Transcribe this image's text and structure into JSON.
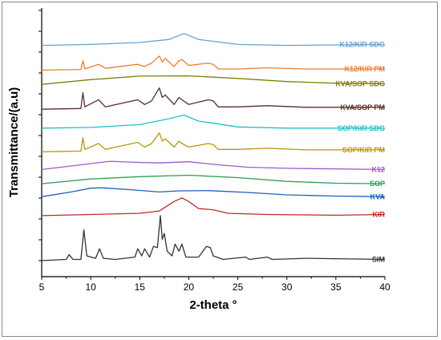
{
  "chart_data": {
    "type": "line",
    "xlabel": "2-theta °",
    "ylabel": "Transmittance/(a.u)",
    "xlim": [
      5,
      40
    ],
    "xticks": [
      5,
      10,
      15,
      20,
      25,
      30,
      35,
      40
    ],
    "ylim": [
      0,
      100
    ],
    "grid": false,
    "legend": "inline-right",
    "series": [
      {
        "name": "K12/KIR SDG",
        "color": "#6a9fc8",
        "baseline": 91,
        "points": [
          [
            5,
            0
          ],
          [
            10,
            0.4
          ],
          [
            15,
            1.2
          ],
          [
            18,
            2.5
          ],
          [
            19.5,
            5
          ],
          [
            21,
            2.5
          ],
          [
            25,
            0.4
          ],
          [
            30,
            0
          ],
          [
            40,
            0.4
          ]
        ]
      },
      {
        "name": "K12/KIR PM",
        "color": "#ed7d31",
        "baseline": 80.5,
        "points": [
          [
            5,
            0
          ],
          [
            9,
            0.3
          ],
          [
            9.2,
            4
          ],
          [
            9.4,
            0.5
          ],
          [
            10.8,
            2.5
          ],
          [
            11.5,
            0.8
          ],
          [
            14.8,
            2.5
          ],
          [
            15.5,
            1.5
          ],
          [
            16.2,
            3
          ],
          [
            17,
            6
          ],
          [
            17.3,
            3.5
          ],
          [
            17.6,
            5
          ],
          [
            18.5,
            1.5
          ],
          [
            19,
            4
          ],
          [
            19.3,
            4.5
          ],
          [
            20,
            2
          ],
          [
            22,
            3
          ],
          [
            22.5,
            2.5
          ],
          [
            23,
            0.5
          ],
          [
            25,
            0.5
          ],
          [
            28,
            1
          ],
          [
            32,
            0.5
          ],
          [
            40,
            0.5
          ]
        ]
      },
      {
        "name": "KVA/SOP SDG",
        "color": "#808000",
        "baseline": 74.5,
        "points": [
          [
            5,
            0
          ],
          [
            10,
            2
          ],
          [
            15,
            3.5
          ],
          [
            20,
            3.6
          ],
          [
            25,
            2.5
          ],
          [
            30,
            1.2
          ],
          [
            35,
            0.5
          ],
          [
            40,
            0.3
          ]
        ]
      },
      {
        "name": "KVA/SOP PM",
        "color": "#5b2c2c",
        "baseline": 64,
        "points": [
          [
            5,
            0
          ],
          [
            9,
            0.3
          ],
          [
            9.2,
            7
          ],
          [
            9.4,
            1
          ],
          [
            10.8,
            4
          ],
          [
            11.5,
            1
          ],
          [
            14.8,
            4
          ],
          [
            15.5,
            2
          ],
          [
            16.2,
            3.5
          ],
          [
            17,
            9
          ],
          [
            17.3,
            5
          ],
          [
            17.6,
            6
          ],
          [
            18.5,
            2
          ],
          [
            19,
            5
          ],
          [
            19.3,
            4
          ],
          [
            20,
            2
          ],
          [
            22,
            4
          ],
          [
            22.5,
            3.5
          ],
          [
            23,
            1
          ],
          [
            25,
            1
          ],
          [
            28,
            1.5
          ],
          [
            32,
            0.8
          ],
          [
            40,
            0.8
          ]
        ]
      },
      {
        "name": "SOP/KIR SDG",
        "color": "#20c0c8",
        "baseline": 56,
        "points": [
          [
            5,
            0
          ],
          [
            10,
            0.3
          ],
          [
            15,
            1.5
          ],
          [
            18,
            4
          ],
          [
            19.5,
            5.5
          ],
          [
            21,
            3
          ],
          [
            25,
            0.5
          ],
          [
            30,
            0
          ],
          [
            40,
            0
          ]
        ]
      },
      {
        "name": "SOP/KIR PM",
        "color": "#b8960c",
        "baseline": 46,
        "points": [
          [
            5,
            0
          ],
          [
            9,
            0.3
          ],
          [
            9.2,
            6
          ],
          [
            9.4,
            1
          ],
          [
            10.8,
            3.5
          ],
          [
            11.5,
            1
          ],
          [
            14.8,
            4
          ],
          [
            15.5,
            2
          ],
          [
            16.2,
            3.5
          ],
          [
            17,
            8
          ],
          [
            17.3,
            4.5
          ],
          [
            17.6,
            5.5
          ],
          [
            18.5,
            2
          ],
          [
            19,
            4.5
          ],
          [
            19.3,
            3.5
          ],
          [
            20,
            2
          ],
          [
            22,
            3.5
          ],
          [
            22.5,
            3
          ],
          [
            23,
            1
          ],
          [
            25,
            1
          ],
          [
            28,
            1.5
          ],
          [
            32,
            0.8
          ],
          [
            40,
            0.8
          ]
        ]
      },
      {
        "name": "K12",
        "color": "#9b59d0",
        "baseline": 38.5,
        "points": [
          [
            5,
            0
          ],
          [
            8,
            1.5
          ],
          [
            12,
            3.5
          ],
          [
            15,
            3
          ],
          [
            17,
            2.8
          ],
          [
            20,
            3.3
          ],
          [
            23,
            2
          ],
          [
            26,
            1
          ],
          [
            30,
            0.5
          ],
          [
            40,
            0
          ]
        ]
      },
      {
        "name": "SOP",
        "color": "#2e9e57",
        "baseline": 32.5,
        "points": [
          [
            5,
            0
          ],
          [
            10,
            2
          ],
          [
            15,
            3
          ],
          [
            20,
            3.6
          ],
          [
            25,
            2.6
          ],
          [
            30,
            1
          ],
          [
            35,
            0.2
          ],
          [
            40,
            0
          ]
        ]
      },
      {
        "name": "KVA",
        "color": "#1f5fbf",
        "baseline": 27,
        "points": [
          [
            5,
            0
          ],
          [
            8,
            2
          ],
          [
            10,
            3.6
          ],
          [
            11,
            3.8
          ],
          [
            14,
            3
          ],
          [
            17,
            2
          ],
          [
            19,
            2.5
          ],
          [
            22,
            2.6
          ],
          [
            26,
            1.8
          ],
          [
            30,
            0.8
          ],
          [
            35,
            0.3
          ],
          [
            40,
            0
          ]
        ]
      },
      {
        "name": "KIR",
        "color": "#c0282a",
        "baseline": 19,
        "points": [
          [
            5,
            0
          ],
          [
            10,
            0.5
          ],
          [
            15,
            1
          ],
          [
            17,
            2
          ],
          [
            18.5,
            6
          ],
          [
            19.3,
            7.5
          ],
          [
            20,
            6
          ],
          [
            21,
            3
          ],
          [
            22.5,
            2.5
          ],
          [
            24,
            1
          ],
          [
            28,
            0.5
          ],
          [
            35,
            0.2
          ],
          [
            40,
            0.5
          ]
        ]
      },
      {
        "name": "SIM",
        "color": "#333333",
        "baseline": 0,
        "points": [
          [
            5,
            0
          ],
          [
            7.5,
            0.5
          ],
          [
            7.8,
            2.5
          ],
          [
            8.2,
            0.5
          ],
          [
            9,
            0.5
          ],
          [
            9.3,
            13
          ],
          [
            9.6,
            2
          ],
          [
            10.5,
            1
          ],
          [
            10.9,
            5
          ],
          [
            11.3,
            1
          ],
          [
            12.5,
            0.5
          ],
          [
            14.5,
            1.5
          ],
          [
            14.8,
            5
          ],
          [
            15.2,
            2
          ],
          [
            15.5,
            5
          ],
          [
            16,
            1.5
          ],
          [
            16.4,
            6
          ],
          [
            16.8,
            5.5
          ],
          [
            17.1,
            19
          ],
          [
            17.3,
            9
          ],
          [
            17.5,
            11.5
          ],
          [
            17.8,
            4
          ],
          [
            18.3,
            2
          ],
          [
            18.6,
            7
          ],
          [
            19,
            4
          ],
          [
            19.3,
            7
          ],
          [
            19.7,
            1.5
          ],
          [
            21,
            1.5
          ],
          [
            21.8,
            6
          ],
          [
            22.2,
            5.5
          ],
          [
            22.5,
            2
          ],
          [
            23.5,
            0.5
          ],
          [
            25.8,
            1.5
          ],
          [
            26.2,
            0.5
          ],
          [
            28,
            1.5
          ],
          [
            28.5,
            0.5
          ],
          [
            32,
            1
          ],
          [
            40,
            0.5
          ]
        ]
      }
    ]
  }
}
